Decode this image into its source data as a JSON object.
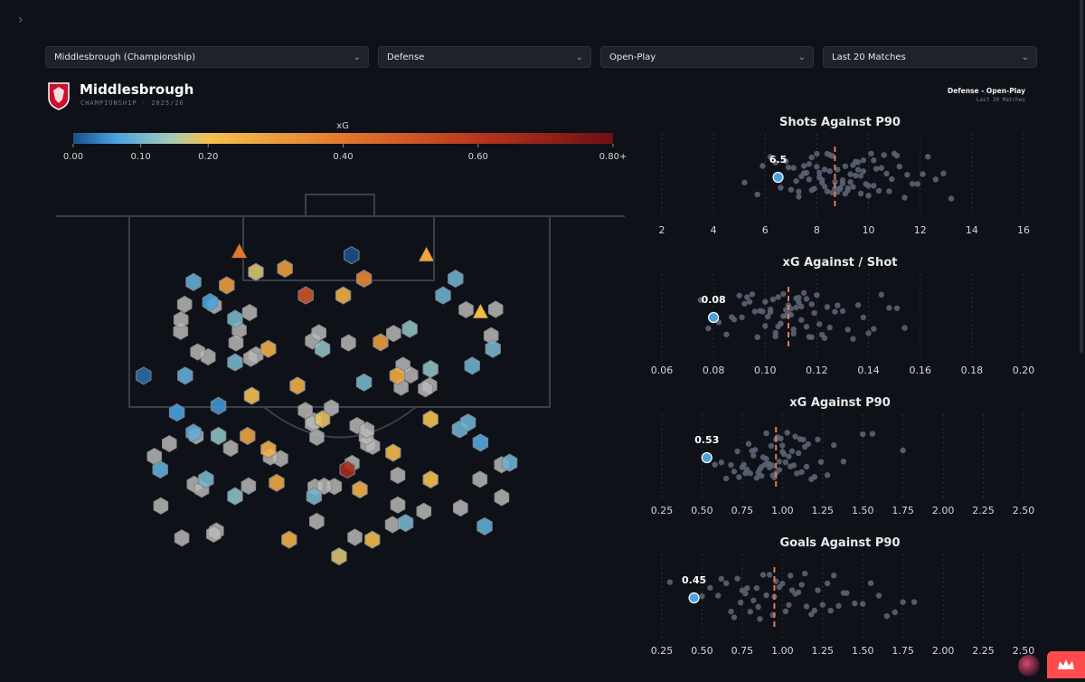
{
  "filters": {
    "team": "Middlesbrough (Championship)",
    "phase": "Defense",
    "situation": "Open-Play",
    "period": "Last 20 Matches"
  },
  "header": {
    "team_name": "Middlesbrough",
    "league_season": "CHAMPIONSHIP · 2025/26",
    "context_line1": "Defense - Open-Play",
    "context_line2": "Last 20 Matches"
  },
  "colors": {
    "background": "#0e1117",
    "pitch_line": "#3a3e48",
    "team_marker": "#4aa3df",
    "average_line": "#e8795a",
    "league_dot": "#5a6374"
  },
  "chart_data": [
    {
      "type": "hexbin",
      "title": "xG",
      "colorbar": {
        "label": "xG",
        "ticks": [
          "0.00",
          "0.10",
          "0.20",
          "0.40",
          "0.60",
          "0.80+"
        ],
        "tick_values": [
          0,
          0.1,
          0.2,
          0.4,
          0.6,
          0.8
        ],
        "range": [
          0,
          0.8
        ]
      },
      "shots": [
        {
          "x": 0.53,
          "y": 0.94,
          "xg": 0.0,
          "shape": "hex"
        },
        {
          "x": 0.3,
          "y": 0.89,
          "xg": 0.18,
          "shape": "hex"
        },
        {
          "x": 0.15,
          "y": 0.86,
          "xg": 0.08,
          "shape": "hex"
        },
        {
          "x": 0.03,
          "y": 0.58,
          "xg": 0.02,
          "shape": "hex"
        },
        {
          "x": 0.13,
          "y": 0.58,
          "xg": 0.08,
          "shape": "hex"
        },
        {
          "x": 0.21,
          "y": 0.49,
          "xg": 0.05,
          "shape": "hex"
        },
        {
          "x": 0.19,
          "y": 0.8,
          "xg": 0.06,
          "shape": "hex"
        },
        {
          "x": 0.23,
          "y": 0.85,
          "xg": 0.3,
          "shape": "hex"
        },
        {
          "x": 0.25,
          "y": 0.75,
          "xg": 0.1,
          "shape": "hex"
        },
        {
          "x": 0.37,
          "y": 0.9,
          "xg": 0.3,
          "shape": "hex"
        },
        {
          "x": 0.42,
          "y": 0.82,
          "xg": 0.5,
          "shape": "hex"
        },
        {
          "x": 0.51,
          "y": 0.82,
          "xg": 0.25,
          "shape": "hex"
        },
        {
          "x": 0.56,
          "y": 0.87,
          "xg": 0.36,
          "shape": "hex"
        },
        {
          "x": 0.6,
          "y": 0.68,
          "xg": 0.3,
          "shape": "hex"
        },
        {
          "x": 0.67,
          "y": 0.72,
          "xg": 0.12,
          "shape": "hex"
        },
        {
          "x": 0.75,
          "y": 0.82,
          "xg": 0.09,
          "shape": "hex"
        },
        {
          "x": 0.82,
          "y": 0.61,
          "xg": 0.09,
          "shape": "hex"
        },
        {
          "x": 0.87,
          "y": 0.66,
          "xg": 0.1,
          "shape": "hex"
        },
        {
          "x": 0.84,
          "y": 0.38,
          "xg": 0.07,
          "shape": "hex"
        },
        {
          "x": 0.79,
          "y": 0.42,
          "xg": 0.09,
          "shape": "hex"
        },
        {
          "x": 0.72,
          "y": 0.45,
          "xg": 0.2,
          "shape": "hex"
        },
        {
          "x": 0.63,
          "y": 0.35,
          "xg": 0.22,
          "shape": "hex"
        },
        {
          "x": 0.46,
          "y": 0.45,
          "xg": 0.19,
          "shape": "hex"
        },
        {
          "x": 0.52,
          "y": 0.3,
          "xg": 0.65,
          "shape": "hex"
        },
        {
          "x": 0.29,
          "y": 0.52,
          "xg": 0.2,
          "shape": "hex"
        },
        {
          "x": 0.4,
          "y": 0.55,
          "xg": 0.25,
          "shape": "hex"
        },
        {
          "x": 0.33,
          "y": 0.36,
          "xg": 0.25,
          "shape": "hex"
        },
        {
          "x": 0.28,
          "y": 0.4,
          "xg": 0.28,
          "shape": "hex"
        },
        {
          "x": 0.21,
          "y": 0.4,
          "xg": 0.12,
          "shape": "hex"
        },
        {
          "x": 0.15,
          "y": 0.41,
          "xg": 0.08,
          "shape": "hex"
        },
        {
          "x": 0.11,
          "y": 0.47,
          "xg": 0.06,
          "shape": "hex"
        },
        {
          "x": 0.07,
          "y": 0.3,
          "xg": 0.08,
          "shape": "hex"
        },
        {
          "x": 0.18,
          "y": 0.27,
          "xg": 0.1,
          "shape": "hex"
        },
        {
          "x": 0.35,
          "y": 0.26,
          "xg": 0.27,
          "shape": "hex"
        },
        {
          "x": 0.44,
          "y": 0.22,
          "xg": 0.1,
          "shape": "hex"
        },
        {
          "x": 0.55,
          "y": 0.24,
          "xg": 0.24,
          "shape": "hex"
        },
        {
          "x": 0.58,
          "y": 0.09,
          "xg": 0.22,
          "shape": "hex"
        },
        {
          "x": 0.5,
          "y": 0.04,
          "xg": 0.18,
          "shape": "hex"
        },
        {
          "x": 0.38,
          "y": 0.09,
          "xg": 0.25,
          "shape": "hex"
        },
        {
          "x": 0.25,
          "y": 0.22,
          "xg": 0.12,
          "shape": "hex"
        },
        {
          "x": 0.66,
          "y": 0.14,
          "xg": 0.1,
          "shape": "hex"
        },
        {
          "x": 0.72,
          "y": 0.27,
          "xg": 0.2,
          "shape": "hex"
        },
        {
          "x": 0.85,
          "y": 0.13,
          "xg": 0.08,
          "shape": "hex"
        },
        {
          "x": 0.91,
          "y": 0.32,
          "xg": 0.09,
          "shape": "hex"
        },
        {
          "x": 0.25,
          "y": 0.62,
          "xg": 0.1,
          "shape": "hex"
        },
        {
          "x": 0.33,
          "y": 0.66,
          "xg": 0.25,
          "shape": "hex"
        },
        {
          "x": 0.46,
          "y": 0.66,
          "xg": 0.12,
          "shape": "hex"
        },
        {
          "x": 0.56,
          "y": 0.56,
          "xg": 0.1,
          "shape": "hex"
        },
        {
          "x": 0.64,
          "y": 0.58,
          "xg": 0.26,
          "shape": "hex"
        },
        {
          "x": 0.72,
          "y": 0.6,
          "xg": 0.12,
          "shape": "hex"
        },
        {
          "x": 0.78,
          "y": 0.87,
          "xg": 0.09,
          "shape": "hex"
        },
        {
          "x": 0.81,
          "y": 0.44,
          "xg": 0.09,
          "shape": "hex"
        },
        {
          "x": 0.84,
          "y": 0.77,
          "xg": 0.22,
          "shape": "tri"
        },
        {
          "x": 0.71,
          "y": 0.94,
          "xg": 0.28,
          "shape": "tri"
        },
        {
          "x": 0.26,
          "y": 0.95,
          "xg": 0.4,
          "shape": "tri"
        }
      ],
      "grey_shots": 60
    },
    {
      "type": "strip",
      "title": "Shots Against P90",
      "team_value": 6.5,
      "team_label": "6.5",
      "league_average": 8.7,
      "xlim": [
        2,
        16
      ],
      "ticks": [
        "2",
        "4",
        "6",
        "8",
        "10",
        "12",
        "14",
        "16"
      ],
      "tick_values": [
        2,
        4,
        6,
        8,
        10,
        12,
        14,
        16
      ],
      "league_values": [
        5.2,
        5.7,
        5.9,
        6.2,
        6.4,
        6.6,
        6.8,
        6.9,
        7.0,
        7.1,
        7.2,
        7.3,
        7.3,
        7.4,
        7.5,
        7.5,
        7.6,
        7.7,
        7.7,
        7.8,
        7.8,
        7.9,
        8.0,
        8.0,
        8.1,
        8.1,
        8.2,
        8.2,
        8.3,
        8.3,
        8.4,
        8.4,
        8.5,
        8.5,
        8.6,
        8.6,
        8.7,
        8.7,
        8.8,
        8.8,
        8.9,
        8.9,
        9.0,
        9.0,
        9.1,
        9.1,
        9.2,
        9.2,
        9.3,
        9.3,
        9.4,
        9.4,
        9.5,
        9.5,
        9.6,
        9.6,
        9.7,
        9.7,
        9.8,
        9.8,
        9.9,
        10.0,
        10.0,
        10.1,
        10.2,
        10.2,
        10.3,
        10.4,
        10.5,
        10.6,
        10.7,
        10.8,
        10.9,
        11.0,
        11.1,
        11.2,
        11.4,
        11.5,
        11.7,
        11.9,
        12.1,
        12.3,
        12.6,
        12.9,
        13.2
      ]
    },
    {
      "type": "strip",
      "title": "xG Against / Shot",
      "team_value": 0.08,
      "team_label": "0.08",
      "league_average": 0.109,
      "xlim": [
        0.06,
        0.2
      ],
      "ticks": [
        "0.06",
        "0.08",
        "0.10",
        "0.12",
        "0.14",
        "0.16",
        "0.18",
        "0.20"
      ],
      "tick_values": [
        0.06,
        0.08,
        0.1,
        0.12,
        0.14,
        0.16,
        0.18,
        0.2
      ],
      "league_values": [
        0.075,
        0.078,
        0.082,
        0.085,
        0.087,
        0.088,
        0.09,
        0.091,
        0.092,
        0.093,
        0.094,
        0.095,
        0.096,
        0.097,
        0.098,
        0.099,
        0.1,
        0.1,
        0.101,
        0.102,
        0.102,
        0.103,
        0.104,
        0.104,
        0.105,
        0.105,
        0.106,
        0.106,
        0.107,
        0.107,
        0.108,
        0.108,
        0.109,
        0.109,
        0.11,
        0.11,
        0.111,
        0.111,
        0.112,
        0.112,
        0.113,
        0.113,
        0.114,
        0.114,
        0.115,
        0.116,
        0.116,
        0.117,
        0.118,
        0.118,
        0.119,
        0.12,
        0.121,
        0.122,
        0.123,
        0.124,
        0.125,
        0.127,
        0.128,
        0.13,
        0.132,
        0.134,
        0.136,
        0.138,
        0.14,
        0.142,
        0.145,
        0.148,
        0.151,
        0.154
      ]
    },
    {
      "type": "strip",
      "title": "xG Against P90",
      "team_value": 0.53,
      "team_label": "0.53",
      "league_average": 0.96,
      "xlim": [
        0.25,
        2.5
      ],
      "ticks": [
        "0.25",
        "0.50",
        "0.75",
        "1.00",
        "1.25",
        "1.50",
        "1.75",
        "2.00",
        "2.25",
        "2.50"
      ],
      "tick_values": [
        0.25,
        0.5,
        0.75,
        1.0,
        1.25,
        1.5,
        1.75,
        2.0,
        2.25,
        2.5
      ],
      "league_values": [
        0.58,
        0.62,
        0.65,
        0.68,
        0.7,
        0.72,
        0.73,
        0.75,
        0.76,
        0.77,
        0.78,
        0.79,
        0.8,
        0.81,
        0.82,
        0.83,
        0.84,
        0.85,
        0.86,
        0.87,
        0.87,
        0.88,
        0.89,
        0.9,
        0.9,
        0.91,
        0.92,
        0.92,
        0.93,
        0.94,
        0.94,
        0.95,
        0.96,
        0.96,
        0.97,
        0.98,
        0.98,
        0.99,
        1.0,
        1.0,
        1.01,
        1.02,
        1.03,
        1.04,
        1.05,
        1.06,
        1.07,
        1.08,
        1.09,
        1.1,
        1.11,
        1.12,
        1.13,
        1.14,
        1.15,
        1.16,
        1.18,
        1.2,
        1.22,
        1.24,
        1.28,
        1.32,
        1.38,
        1.5,
        1.56,
        1.75
      ]
    },
    {
      "type": "strip",
      "title": "Goals Against P90",
      "team_value": 0.45,
      "team_label": "0.45",
      "league_average": 0.95,
      "xlim": [
        0.25,
        2.5
      ],
      "ticks": [
        "0.25",
        "0.50",
        "0.75",
        "1.00",
        "1.25",
        "1.50",
        "1.75",
        "2.00",
        "2.25",
        "2.50"
      ],
      "tick_values": [
        0.25,
        0.5,
        0.75,
        1.0,
        1.25,
        1.5,
        1.75,
        2.0,
        2.25,
        2.5
      ],
      "league_values": [
        0.3,
        0.5,
        0.55,
        0.6,
        0.62,
        0.65,
        0.68,
        0.7,
        0.72,
        0.74,
        0.75,
        0.77,
        0.78,
        0.8,
        0.82,
        0.84,
        0.85,
        0.86,
        0.88,
        0.9,
        0.92,
        0.94,
        0.95,
        0.96,
        0.98,
        1.0,
        1.02,
        1.04,
        1.05,
        1.06,
        1.08,
        1.1,
        1.12,
        1.14,
        1.15,
        1.18,
        1.2,
        1.22,
        1.25,
        1.28,
        1.3,
        1.32,
        1.35,
        1.38,
        1.4,
        1.45,
        1.5,
        1.55,
        1.6,
        1.65,
        1.7,
        1.75,
        1.82
      ]
    }
  ]
}
